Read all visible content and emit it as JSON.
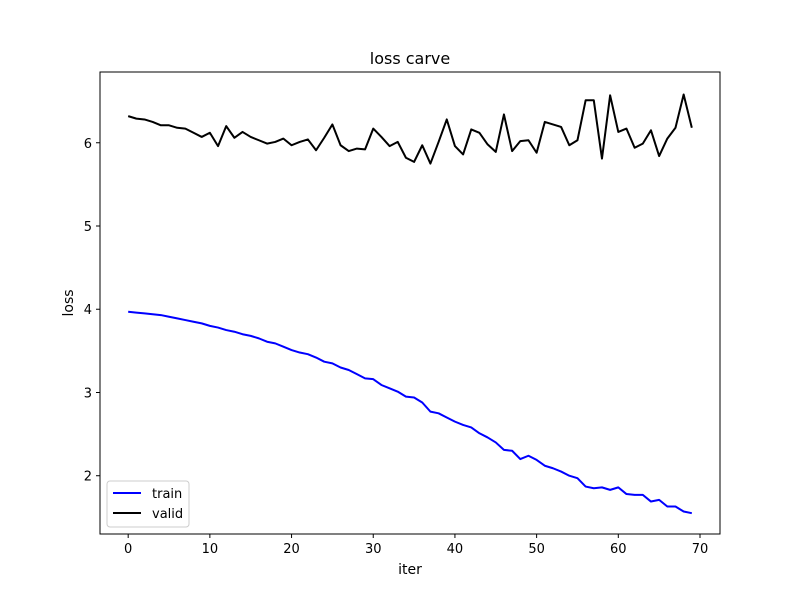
{
  "chart_data": {
    "type": "line",
    "title": "loss carve",
    "xlabel": "iter",
    "ylabel": "loss",
    "xlim": [
      -3.45,
      72.45
    ],
    "ylim": [
      1.3,
      6.85
    ],
    "xticks": [
      0,
      10,
      20,
      30,
      40,
      50,
      60,
      70
    ],
    "yticks": [
      2,
      3,
      4,
      5,
      6
    ],
    "grid": false,
    "legend_position": "lower-left",
    "x": [
      0,
      1,
      2,
      3,
      4,
      5,
      6,
      7,
      8,
      9,
      10,
      11,
      12,
      13,
      14,
      15,
      16,
      17,
      18,
      19,
      20,
      21,
      22,
      23,
      24,
      25,
      26,
      27,
      28,
      29,
      30,
      31,
      32,
      33,
      34,
      35,
      36,
      37,
      38,
      39,
      40,
      41,
      42,
      43,
      44,
      45,
      46,
      47,
      48,
      49,
      50,
      51,
      52,
      53,
      54,
      55,
      56,
      57,
      58,
      59,
      60,
      61,
      62,
      63,
      64,
      65,
      66,
      67,
      68,
      69
    ],
    "series": [
      {
        "name": "train",
        "color": "#0000ff",
        "values": [
          3.97,
          3.96,
          3.95,
          3.94,
          3.93,
          3.91,
          3.89,
          3.87,
          3.85,
          3.83,
          3.8,
          3.78,
          3.75,
          3.73,
          3.7,
          3.68,
          3.65,
          3.61,
          3.59,
          3.55,
          3.51,
          3.48,
          3.46,
          3.42,
          3.37,
          3.35,
          3.3,
          3.27,
          3.22,
          3.17,
          3.16,
          3.09,
          3.05,
          3.01,
          2.95,
          2.94,
          2.88,
          2.77,
          2.75,
          2.7,
          2.65,
          2.61,
          2.58,
          2.51,
          2.46,
          2.4,
          2.31,
          2.3,
          2.2,
          2.24,
          2.19,
          2.12,
          2.09,
          2.05,
          2.0,
          1.97,
          1.87,
          1.85,
          1.86,
          1.83,
          1.86,
          1.78,
          1.77,
          1.77,
          1.69,
          1.71,
          1.63,
          1.63,
          1.57,
          1.55
        ]
      },
      {
        "name": "valid",
        "color": "#000000",
        "values": [
          6.32,
          6.29,
          6.28,
          6.25,
          6.21,
          6.21,
          6.18,
          6.17,
          6.12,
          6.07,
          6.12,
          5.96,
          6.2,
          6.06,
          6.13,
          6.07,
          6.03,
          5.99,
          6.01,
          6.05,
          5.97,
          6.01,
          6.04,
          5.91,
          6.06,
          6.22,
          5.97,
          5.9,
          5.93,
          5.92,
          6.17,
          6.07,
          5.96,
          6.01,
          5.82,
          5.77,
          5.97,
          5.75,
          6.01,
          6.28,
          5.96,
          5.86,
          6.16,
          6.12,
          5.98,
          5.89,
          6.34,
          5.9,
          6.02,
          6.03,
          5.88,
          6.25,
          6.22,
          6.19,
          5.97,
          6.03,
          6.51,
          6.51,
          5.81,
          6.57,
          6.13,
          6.17,
          5.94,
          5.99,
          6.15,
          5.84,
          6.05,
          6.18,
          6.58,
          6.18
        ]
      }
    ]
  }
}
